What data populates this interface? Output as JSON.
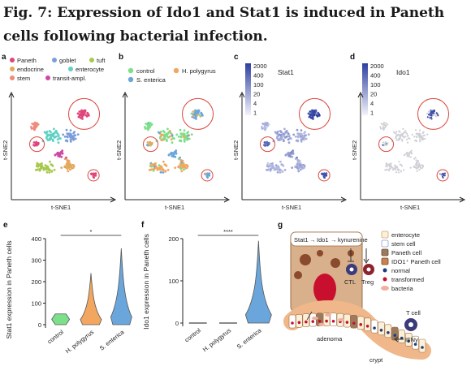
{
  "title": "Fig. 7: Expression of Ido1 and Stat1 is induced in Paneth cells following bacterial infection.",
  "colors": {
    "paneth": "#e0457a",
    "goblet": "#7b9ddb",
    "tuft": "#a7c94e",
    "endocrine": "#e3a85a",
    "enterocyte": "#5fd1c3",
    "stem": "#f08a7a",
    "transit": "#d147a3",
    "control": "#7ce08a",
    "hpoly": "#f2a65f",
    "sent": "#6aa6db",
    "circle": "#d9463d",
    "expr_high": "#2d3fa0",
    "expr_low": "#d8dcf2"
  },
  "panels": {
    "a": {
      "label": "a",
      "legend": [
        {
          "key": "paneth",
          "label": "Paneth"
        },
        {
          "key": "goblet",
          "label": "goblet"
        },
        {
          "key": "tuft",
          "label": "tuft"
        },
        {
          "key": "endocrine",
          "label": "endocrine"
        },
        {
          "key": "enterocyte",
          "label": "enterocyte"
        },
        {
          "key": "stem",
          "label": "stem"
        },
        {
          "key": "transit",
          "label": "transit-ampl."
        }
      ]
    },
    "b": {
      "label": "b",
      "legend": [
        {
          "key": "control",
          "label": "control"
        },
        {
          "key": "hpoly",
          "label": "H. polygyrus"
        },
        {
          "key": "sent",
          "label": "S. enterica"
        }
      ]
    },
    "c": {
      "label": "c",
      "gene": "Stat1",
      "scale": [
        "2000",
        "400",
        "100",
        "20",
        "4",
        "1"
      ]
    },
    "d": {
      "label": "d",
      "gene": "Ido1",
      "scale": [
        "2000",
        "400",
        "100",
        "20",
        "4",
        "1"
      ]
    },
    "tsne": {
      "xlabel": "t-SNE1",
      "ylabel": "t-SNE2"
    },
    "e": {
      "label": "e",
      "chart_data": {
        "type": "violin",
        "ylabel": "Stat1 expression in Paneth cells",
        "categories": [
          "control",
          "H. polygyrus",
          "S. enterica"
        ],
        "yticks": [
          0,
          100,
          200,
          300,
          400
        ],
        "ylim": [
          0,
          400
        ],
        "significance": "*",
        "series": [
          {
            "category": "control",
            "min": 0,
            "max": 50
          },
          {
            "category": "H. polygyrus",
            "min": 0,
            "max": 240
          },
          {
            "category": "S. enterica",
            "min": 0,
            "max": 355
          }
        ]
      }
    },
    "f": {
      "label": "f",
      "chart_data": {
        "type": "violin",
        "ylabel": "Ido1 expression in Paneth cells",
        "categories": [
          "control",
          "H. polygyrus",
          "S. enterica"
        ],
        "yticks": [
          0,
          100,
          200
        ],
        "ylim": [
          0,
          200
        ],
        "significance": "****",
        "series": [
          {
            "category": "control",
            "min": 0,
            "max": 0
          },
          {
            "category": "H. polygyrus",
            "min": 0,
            "max": 0
          },
          {
            "category": "S. enterica",
            "min": 0,
            "max": 195
          }
        ]
      }
    },
    "g": {
      "label": "g",
      "stat1": "Stat1",
      "ido1": "Ido1",
      "kynurenine": "kynurenine",
      "ctl": "CTL",
      "treg": "Treg",
      "legend": [
        "enterocyte",
        "stem cell",
        "Paneth cell",
        "IDO1⁺ Paneth cell",
        "normal",
        "transformed",
        "bacteria"
      ],
      "adenoma": "adenoma",
      "crypt": "crypt",
      "tcell": "T cell",
      "ifn": "IFNγ"
    }
  }
}
